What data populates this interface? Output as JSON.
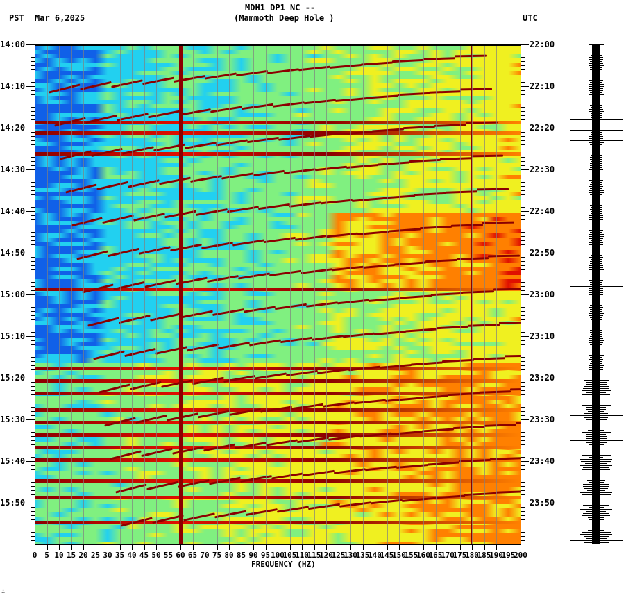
{
  "header": {
    "title_line1": "MDH1 DP1 NC --",
    "title_line2": "(Mammoth Deep Hole )",
    "left_timezone": "PST",
    "date": "Mar 6,2025",
    "right_timezone": "UTC"
  },
  "footer_mark": "∴",
  "colors": {
    "low": "#1060e8",
    "mid_low": "#22d0f0",
    "mid": "#80f080",
    "mid_high": "#f0f020",
    "high": "#ff8000",
    "very_high": "#e01000",
    "max": "#8b0000",
    "gridline": "#808080",
    "seismogram": "#000000"
  },
  "chart_data": [
    {
      "type": "heatmap",
      "title": "MDH1 DP1 NC -- (Mammoth Deep Hole ) spectrogram",
      "xlabel": "FREQUENCY (HZ)",
      "ylabel_left": "PST",
      "ylabel_right": "UTC",
      "x_range": [
        0,
        200
      ],
      "x_ticks": [
        0,
        5,
        10,
        15,
        20,
        25,
        30,
        35,
        40,
        45,
        50,
        55,
        60,
        65,
        70,
        75,
        80,
        85,
        90,
        95,
        100,
        105,
        110,
        115,
        120,
        125,
        130,
        135,
        140,
        145,
        150,
        155,
        160,
        165,
        170,
        175,
        180,
        185,
        190,
        195,
        200
      ],
      "y_ticks_left": [
        "14:00",
        "14:10",
        "14:20",
        "14:30",
        "14:40",
        "14:50",
        "15:00",
        "15:10",
        "15:20",
        "15:30",
        "15:40",
        "15:50"
      ],
      "y_ticks_right": [
        "22:00",
        "22:10",
        "22:20",
        "22:30",
        "22:40",
        "22:50",
        "23:00",
        "23:10",
        "23:20",
        "23:30",
        "23:40",
        "23:50"
      ],
      "time_range_minutes": [
        0,
        120
      ],
      "colormap": "jet (blue=low power, dark red=high power)",
      "persistent_lines_hz": [
        60,
        180
      ],
      "broadband_events_minutes": [
        18,
        20.5,
        25.5,
        58,
        77,
        80,
        83,
        87,
        90,
        93,
        96,
        99,
        104,
        108,
        114
      ],
      "grid": "vertical lines every 5 Hz"
    },
    {
      "type": "line",
      "title": "Seismogram trace",
      "time_range_minutes": [
        0,
        120
      ],
      "notable_bursts_minutes": [
        18,
        20.5,
        23,
        58,
        79,
        85,
        89,
        95,
        98,
        104,
        110,
        119
      ]
    }
  ],
  "axes": {
    "left_labels": [
      "14:00",
      "14:10",
      "14:20",
      "14:30",
      "14:40",
      "14:50",
      "15:00",
      "15:10",
      "15:20",
      "15:30",
      "15:40",
      "15:50"
    ],
    "right_labels": [
      "22:00",
      "22:10",
      "22:20",
      "22:30",
      "22:40",
      "22:50",
      "23:00",
      "23:10",
      "23:20",
      "23:30",
      "23:40",
      "23:50"
    ],
    "freq_labels": [
      "0",
      "5",
      "10",
      "15",
      "20",
      "25",
      "30",
      "35",
      "40",
      "45",
      "50",
      "55",
      "60",
      "65",
      "70",
      "75",
      "80",
      "85",
      "90",
      "95",
      "100",
      "105",
      "110",
      "115",
      "120",
      "125",
      "130",
      "135",
      "140",
      "145",
      "150",
      "155",
      "160",
      "165",
      "170",
      "175",
      "180",
      "185",
      "190",
      "195",
      "200"
    ],
    "freq_title": "FREQUENCY (HZ)"
  }
}
